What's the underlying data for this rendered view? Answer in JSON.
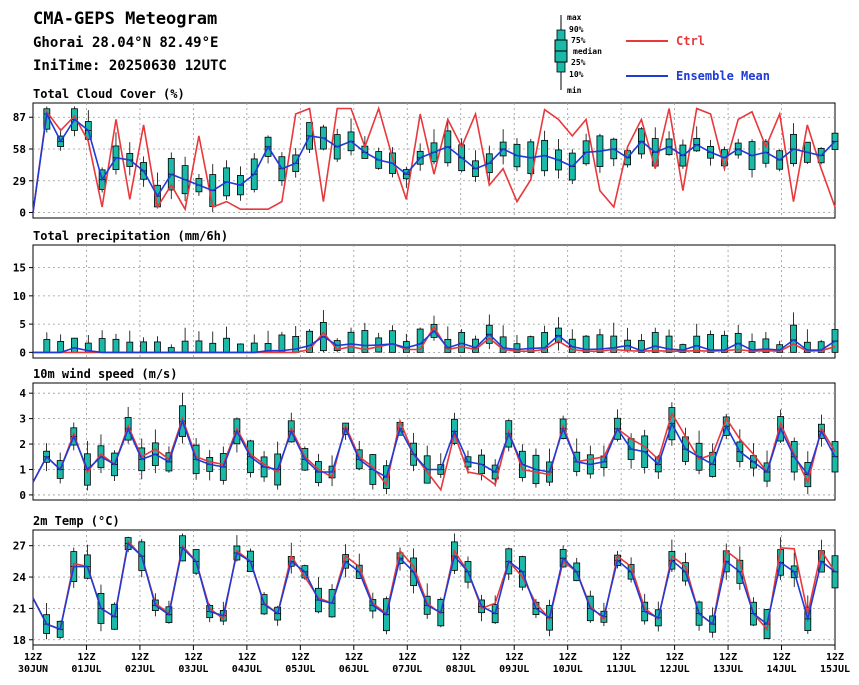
{
  "header": {
    "title": "CMA-GEPS Meteogram",
    "location": "Ghorai 28.04°N 82.49°E",
    "init_time": "IniTime: 20250630 12UTC"
  },
  "box_legend": {
    "labels": [
      "max",
      "90%",
      "75%",
      "median",
      "25%",
      "10%",
      "min"
    ]
  },
  "legend": {
    "ctrl_label": "Ctrl",
    "ctrl_color": "#e8383c",
    "mean_label": "Ensemble Mean",
    "mean_color": "#1f3bd6",
    "box_fill": "#1ab9a8",
    "box_stroke": "#000000"
  },
  "x_axis": {
    "ticks": [
      {
        "top": "12Z",
        "bottom": "30JUN"
      },
      {
        "top": "12Z",
        "bottom": "01JUL"
      },
      {
        "top": "12Z",
        "bottom": "02JUL"
      },
      {
        "top": "12Z",
        "bottom": "03JUL"
      },
      {
        "top": "12Z",
        "bottom": "04JUL"
      },
      {
        "top": "12Z",
        "bottom": "05JUL"
      },
      {
        "top": "12Z",
        "bottom": "06JUL"
      },
      {
        "top": "12Z",
        "bottom": "07JUL"
      },
      {
        "top": "12Z",
        "bottom": "08JUL"
      },
      {
        "top": "12Z",
        "bottom": "09JUL"
      },
      {
        "top": "12Z",
        "bottom": "10JUL"
      },
      {
        "top": "12Z",
        "bottom": "11JUL"
      },
      {
        "top": "12Z",
        "bottom": "12JUL"
      },
      {
        "top": "12Z",
        "bottom": "13JUL"
      },
      {
        "top": "12Z",
        "bottom": "14JUL"
      },
      {
        "top": "12Z",
        "bottom": "15JUL"
      }
    ]
  },
  "chart_data": [
    {
      "type": "box",
      "title": "Total Cloud Cover (%)",
      "ylim": [
        -5,
        100
      ],
      "yticks": [
        0,
        29,
        58,
        87
      ],
      "grid": true,
      "series": [
        {
          "name": "Ctrl",
          "values": [
            0,
            92,
            75,
            88,
            65,
            5,
            85,
            12,
            80,
            5,
            25,
            3,
            70,
            5,
            10,
            3,
            3,
            3,
            10,
            90,
            95,
            10,
            95,
            95,
            60,
            95,
            50,
            12,
            90,
            35,
            85,
            60,
            90,
            25,
            40,
            10,
            30,
            94,
            85,
            70,
            85,
            20,
            5,
            60,
            85,
            40,
            95,
            20,
            95,
            90,
            40,
            85,
            92,
            60,
            90,
            10,
            80,
            40,
            5
          ]
        },
        {
          "name": "Ensemble Mean",
          "values": [
            0,
            90,
            65,
            85,
            75,
            30,
            50,
            48,
            38,
            15,
            35,
            30,
            25,
            20,
            28,
            25,
            35,
            60,
            40,
            45,
            70,
            68,
            60,
            65,
            55,
            48,
            45,
            35,
            50,
            55,
            60,
            50,
            40,
            45,
            58,
            52,
            50,
            52,
            48,
            42,
            55,
            56,
            58,
            50,
            65,
            55,
            60,
            52,
            62,
            55,
            50,
            58,
            52,
            55,
            48,
            58,
            55,
            52,
            65
          ]
        }
      ]
    },
    {
      "type": "box",
      "title": "Total precipitation (mm/6h)",
      "ylim": [
        -1,
        19
      ],
      "yticks": [
        0,
        5,
        10,
        15
      ],
      "grid": true,
      "series": [
        {
          "name": "Ctrl",
          "values": [
            0,
            0,
            0,
            0,
            0,
            0,
            0,
            0,
            0,
            0,
            0,
            0,
            0,
            0,
            0,
            0,
            0,
            0,
            0,
            0,
            0.5,
            3.5,
            0.5,
            1,
            0.5,
            1,
            1.5,
            0.5,
            0.5,
            4.5,
            0.5,
            1,
            0.5,
            2.5,
            0.5,
            0.2,
            0.2,
            0.5,
            2,
            0.5,
            0.2,
            0.2,
            0.5,
            0.3,
            0.2,
            0.3,
            0.2,
            0.2,
            0.3,
            0.2,
            0.3,
            0.5,
            0.2,
            0.3,
            0.2,
            1.5,
            0.2,
            0.3,
            1
          ]
        },
        {
          "name": "Ensemble Mean",
          "values": [
            0,
            0,
            0,
            0.8,
            0.3,
            0,
            0,
            0,
            0,
            0,
            0,
            0,
            0,
            0,
            0,
            0,
            0,
            0.3,
            0.3,
            0.6,
            1.2,
            2.8,
            1.2,
            1.5,
            1.2,
            1.3,
            1.5,
            0.8,
            1.5,
            3.8,
            0.8,
            1.6,
            0.8,
            3.2,
            0.8,
            0.5,
            0.7,
            0.8,
            3,
            1,
            0.5,
            0.6,
            0.8,
            1.2,
            0.3,
            1.1,
            0.6,
            0.4,
            1.2,
            0.4,
            0.4,
            1.6,
            0.4,
            0.6,
            0.4,
            2.2,
            0.4,
            0.4,
            2
          ]
        }
      ]
    },
    {
      "type": "box",
      "title": "10m wind speed (m/s)",
      "ylim": [
        -0.2,
        4.4
      ],
      "yticks": [
        0,
        1,
        2,
        3,
        4
      ],
      "grid": true,
      "series": [
        {
          "name": "Ctrl",
          "values": [
            0.5,
            1.5,
            1,
            2.4,
            0.9,
            1.6,
            1.2,
            2.7,
            1.5,
            1.8,
            1.4,
            3,
            1.5,
            1.3,
            1.2,
            2.6,
            1.6,
            1.2,
            0.9,
            2.6,
            1.5,
            1,
            0.7,
            2.7,
            1.5,
            1.1,
            0.4,
            2.9,
            1.6,
            0.9,
            0.2,
            2.4,
            0.9,
            0.8,
            0.4,
            2.5,
            1,
            0.9,
            0.8,
            2.7,
            1.3,
            1.4,
            1.5,
            2.6,
            2.2,
            1.9,
            1.4,
            3.2,
            2.3,
            1.4,
            1.6,
            3,
            2.2,
            1.6,
            0.9,
            2.8,
            1.6,
            0.5,
            2.6,
            1.7
          ]
        },
        {
          "name": "Ensemble Mean",
          "values": [
            0.5,
            1.5,
            1,
            2.3,
            1,
            1.5,
            1.2,
            2.6,
            1.4,
            1.6,
            1.3,
            2.9,
            1.4,
            1.2,
            1.1,
            2.5,
            1.5,
            1.1,
            1,
            2.5,
            1.4,
            0.9,
            0.9,
            2.6,
            1.4,
            1,
            0.7,
            2.6,
            1.6,
            1,
            1,
            2.5,
            1.3,
            1.2,
            0.9,
            2.4,
            1.2,
            1,
            0.9,
            2.6,
            1.3,
            1.2,
            1.3,
            2.6,
            1.8,
            1.7,
            1.2,
            2.8,
            1.8,
            1.5,
            1.2,
            2.7,
            1.7,
            1.3,
            0.9,
            2.6,
            1.5,
            0.8,
            2.5,
            1.5
          ]
        }
      ]
    },
    {
      "type": "box",
      "title": "2m Temp (°C)",
      "ylim": [
        17.5,
        28.5
      ],
      "yticks": [
        18,
        21,
        24,
        27
      ],
      "grid": true,
      "series": [
        {
          "name": "Ctrl",
          "values": [
            22,
            19.5,
            19,
            25.3,
            25,
            21,
            20.2,
            27.4,
            26,
            21.5,
            20.5,
            27,
            25.5,
            21,
            20,
            26.5,
            25.5,
            21.5,
            20.5,
            26,
            24,
            22,
            21.5,
            26,
            25,
            21.5,
            20.5,
            26.5,
            25,
            21.5,
            20.5,
            26.5,
            24.5,
            21,
            21.5,
            25.5,
            24,
            21.5,
            20,
            25.5,
            24.5,
            21.2,
            20,
            26,
            25,
            21,
            20,
            26,
            25,
            20.5,
            19.5,
            26.5,
            25.5,
            20.5,
            19,
            26.8,
            26.7,
            20.5,
            26.5,
            24.5
          ]
        },
        {
          "name": "Ensemble Mean",
          "values": [
            22,
            19.5,
            19,
            25,
            25,
            21,
            20.2,
            27.2,
            26,
            21.3,
            20.4,
            26.8,
            25.5,
            20.7,
            20.3,
            26.3,
            25.5,
            21.4,
            20.5,
            25.5,
            24.5,
            21.8,
            21.5,
            25.5,
            24.5,
            21.3,
            20.4,
            25.8,
            24.5,
            21.3,
            20.6,
            26,
            24.5,
            21.2,
            20.5,
            25.5,
            24.5,
            21,
            20.1,
            25.8,
            24.5,
            21,
            20.2,
            25.6,
            24.5,
            20.7,
            20.1,
            25.6,
            24.5,
            20.5,
            19.5,
            25.5,
            24.5,
            20.5,
            19.5,
            25.4,
            24.5,
            20,
            25.5,
            24.5
          ]
        }
      ]
    }
  ]
}
